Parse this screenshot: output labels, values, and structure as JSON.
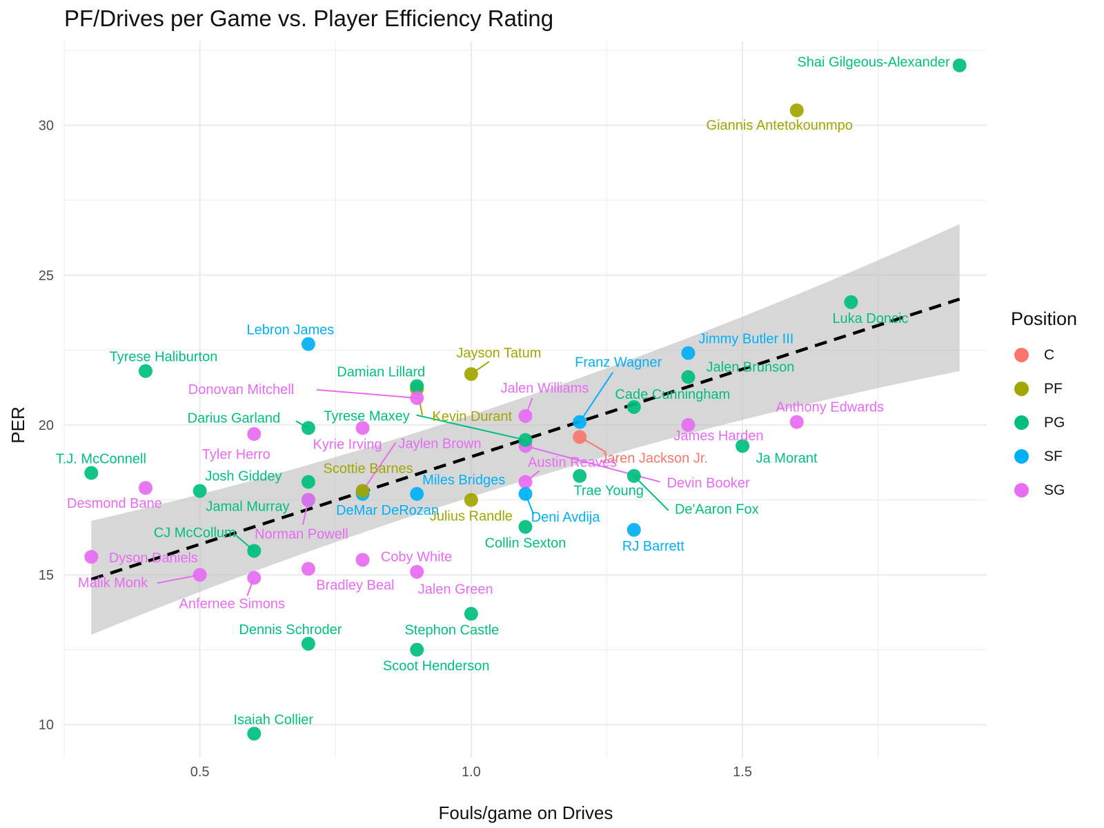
{
  "chart_data": {
    "type": "scatter",
    "title": "PF/Drives per Game vs. Player Efficiency Rating",
    "xlabel": "Fouls/game on Drives",
    "ylabel": "PER",
    "xlim": [
      0.25,
      1.95
    ],
    "ylim": [
      8.9,
      32.8
    ],
    "x_ticks": [
      0.5,
      1.0,
      1.5
    ],
    "x_tick_labels": [
      "0.5",
      "1.0",
      "1.5"
    ],
    "y_ticks": [
      10,
      15,
      20,
      25,
      30
    ],
    "y_tick_labels": [
      "10",
      "15",
      "20",
      "25",
      "30"
    ],
    "grid": true,
    "legend": {
      "title": "Position",
      "placement": "right",
      "entries": [
        {
          "name": "C",
          "color": "#F8766D"
        },
        {
          "name": "PF",
          "color": "#A3A500"
        },
        {
          "name": "PG",
          "color": "#00BF7D"
        },
        {
          "name": "SF",
          "color": "#00B0F6"
        },
        {
          "name": "SG",
          "color": "#E76BF3"
        }
      ]
    },
    "trend": {
      "style": "dashed",
      "color": "#000000",
      "x": [
        0.3,
        1.9
      ],
      "y": [
        14.85,
        24.2
      ],
      "band_upper": [
        16.8,
        26.7
      ],
      "band_lower": [
        13.0,
        21.8
      ],
      "band_color": "#bdbdbd"
    },
    "points": [
      {
        "name": "Shai Gilgeous-Alexander",
        "pos": "PG",
        "x": 1.9,
        "y": 32.0,
        "dx": -14,
        "dy": 2,
        "anchor": "end"
      },
      {
        "name": "Giannis Antetokounmpo",
        "pos": "PF",
        "x": 1.6,
        "y": 30.5,
        "dx": -25,
        "dy": 28,
        "anchor": "middle"
      },
      {
        "name": "Luka Doncic",
        "pos": "PG",
        "x": 1.7,
        "y": 24.1,
        "dx": 28,
        "dy": 30,
        "anchor": "middle"
      },
      {
        "name": "Jimmy Butler III",
        "pos": "SF",
        "x": 1.4,
        "y": 22.4,
        "dx": 84,
        "dy": -14,
        "anchor": "middle"
      },
      {
        "name": "Franz Wagner",
        "pos": "SF",
        "x": 1.2,
        "y": 20.1,
        "dx": 56,
        "dy": -80,
        "anchor": "middle",
        "lx": 48,
        "ly": -72
      },
      {
        "name": "Jalen Brunson",
        "pos": "PG",
        "x": 1.4,
        "y": 21.6,
        "dx": 90,
        "dy": -8,
        "anchor": "middle"
      },
      {
        "name": "Cade Cunningham",
        "pos": "PG",
        "x": 1.3,
        "y": 20.6,
        "dx": 56,
        "dy": -12,
        "anchor": "middle"
      },
      {
        "name": "Anthony Edwards",
        "pos": "SG",
        "x": 1.6,
        "y": 20.1,
        "dx": 48,
        "dy": -15,
        "anchor": "middle"
      },
      {
        "name": "James Harden",
        "pos": "SG",
        "x": 1.4,
        "y": 20.0,
        "dx": 44,
        "dy": 22,
        "anchor": "middle"
      },
      {
        "name": "Ja Morant",
        "pos": "PG",
        "x": 1.5,
        "y": 19.3,
        "dx": 64,
        "dy": 24,
        "anchor": "middle"
      },
      {
        "name": "Jaren Jackson Jr.",
        "pos": "C",
        "x": 1.2,
        "y": 19.6,
        "dx": 108,
        "dy": 37,
        "anchor": "middle",
        "lx": 38,
        "ly": 22
      },
      {
        "name": "Devin Booker",
        "pos": "SG",
        "x": 1.1,
        "y": 19.3,
        "dx": 265,
        "dy": 60,
        "anchor": "middle",
        "lx": 195,
        "ly": 52
      },
      {
        "name": "De'Aaron Fox",
        "pos": "PG",
        "x": 1.3,
        "y": 18.3,
        "dx": 120,
        "dy": 55,
        "anchor": "middle",
        "lx": 50,
        "ly": 50
      },
      {
        "name": "Trae Young",
        "pos": "PG",
        "x": 1.2,
        "y": 18.3,
        "dx": 42,
        "dy": 28,
        "anchor": "middle"
      },
      {
        "name": "RJ Barrett",
        "pos": "SF",
        "x": 1.3,
        "y": 16.5,
        "dx": 28,
        "dy": 30,
        "anchor": "middle"
      },
      {
        "name": "Jalen Williams",
        "pos": "SG",
        "x": 1.1,
        "y": 20.3,
        "dx": 28,
        "dy": -34,
        "anchor": "middle",
        "lx": 10,
        "ly": -26
      },
      {
        "name": "Tyrese Maxey",
        "pos": "PG",
        "x": 1.1,
        "y": 19.5,
        "dx": -230,
        "dy": -28,
        "anchor": "middle",
        "lx": -158,
        "ly": -36
      },
      {
        "name": "Austin Reaves",
        "pos": "SG",
        "x": 1.1,
        "y": 18.1,
        "dx": 68,
        "dy": -22,
        "anchor": "middle",
        "lx": 20,
        "ly": -16
      },
      {
        "name": "Deni Avdija",
        "pos": "SF",
        "x": 1.1,
        "y": 17.7,
        "dx": 58,
        "dy": 40,
        "anchor": "middle",
        "lx": 12,
        "ly": 30
      },
      {
        "name": "Collin Sexton",
        "pos": "PG",
        "x": 1.1,
        "y": 16.6,
        "dx": 0,
        "dy": 30,
        "anchor": "middle"
      },
      {
        "name": "Jayson Tatum",
        "pos": "PF",
        "x": 1.0,
        "y": 21.7,
        "dx": 40,
        "dy": -24,
        "anchor": "middle",
        "lx": 26,
        "ly": -18
      },
      {
        "name": "Kevin Durant",
        "pos": "PF",
        "x": 0.9,
        "y": 21.2,
        "dx": 80,
        "dy": 46,
        "anchor": "middle",
        "lx": 8,
        "ly": 38
      },
      {
        "name": "Julius Randle",
        "pos": "PF",
        "x": 1.0,
        "y": 17.5,
        "dx": 0,
        "dy": 30,
        "anchor": "middle"
      },
      {
        "name": "Stephon Castle",
        "pos": "PG",
        "x": 1.0,
        "y": 13.7,
        "dx": -28,
        "dy": 30,
        "anchor": "middle"
      },
      {
        "name": "Damian Lillard",
        "pos": "PG",
        "x": 0.9,
        "y": 21.3,
        "dx": -52,
        "dy": -14,
        "anchor": "middle"
      },
      {
        "name": "Donovan Mitchell",
        "pos": "SG",
        "x": 0.9,
        "y": 20.9,
        "dx": -178,
        "dy": -6,
        "anchor": "end",
        "lx": -145,
        "ly": -12
      },
      {
        "name": "Jaylen Brown",
        "pos": "SG",
        "x": 0.8,
        "y": 17.8,
        "dx": 112,
        "dy": -62,
        "anchor": "middle",
        "lx": 48,
        "ly": -70
      },
      {
        "name": "Miles Bridges",
        "pos": "SF",
        "x": 0.9,
        "y": 17.7,
        "dx": 68,
        "dy": -14,
        "anchor": "middle"
      },
      {
        "name": "DeMar DeRozan",
        "pos": "SF",
        "x": 0.8,
        "y": 17.7,
        "dx": 36,
        "dy": 30,
        "anchor": "middle"
      },
      {
        "name": "Coby White",
        "pos": "SG",
        "x": 0.8,
        "y": 15.5,
        "dx": 78,
        "dy": 2,
        "anchor": "middle"
      },
      {
        "name": "Jalen Green",
        "pos": "SG",
        "x": 0.9,
        "y": 15.1,
        "dx": 56,
        "dy": 32,
        "anchor": "middle"
      },
      {
        "name": "Scoot Henderson",
        "pos": "PG",
        "x": 0.9,
        "y": 12.5,
        "dx": 28,
        "dy": 30,
        "anchor": "middle"
      },
      {
        "name": "Kyrie Irving",
        "pos": "SG",
        "x": 0.8,
        "y": 19.9,
        "dx": -22,
        "dy": 30,
        "anchor": "middle"
      },
      {
        "name": "Scottie Barnes",
        "pos": "PF",
        "x": 0.8,
        "y": 17.8,
        "dx": 8,
        "dy": -26,
        "anchor": "middle"
      },
      {
        "name": "Lebron James",
        "pos": "SF",
        "x": 0.7,
        "y": 22.7,
        "dx": -26,
        "dy": -14,
        "anchor": "middle"
      },
      {
        "name": "Darius Garland",
        "pos": "PG",
        "x": 0.7,
        "y": 19.9,
        "dx": -108,
        "dy": -8,
        "anchor": "middle",
        "lx": -18,
        "ly": -10
      },
      {
        "name": "Josh Giddey",
        "pos": "PG",
        "x": 0.7,
        "y": 18.1,
        "dx": -94,
        "dy": -2,
        "anchor": "middle"
      },
      {
        "name": "Jamal Murray",
        "pos": "PG",
        "x": 0.7,
        "y": 17.5,
        "dx": -88,
        "dy": 16,
        "anchor": "middle"
      },
      {
        "name": "Norman Powell",
        "pos": "SG",
        "x": 0.7,
        "y": 17.5,
        "dx": -10,
        "dy": 56,
        "anchor": "middle",
        "lx": -8,
        "ly": 36
      },
      {
        "name": "Bradley Beal",
        "pos": "SG",
        "x": 0.7,
        "y": 15.2,
        "dx": 68,
        "dy": 30,
        "anchor": "middle"
      },
      {
        "name": "Dennis Schroder",
        "pos": "PG",
        "x": 0.7,
        "y": 12.7,
        "dx": -26,
        "dy": -14,
        "anchor": "middle"
      },
      {
        "name": "Tyler Herro",
        "pos": "SG",
        "x": 0.6,
        "y": 19.7,
        "dx": -26,
        "dy": 36,
        "anchor": "middle"
      },
      {
        "name": "CJ McCollum",
        "pos": "PG",
        "x": 0.6,
        "y": 15.8,
        "dx": -86,
        "dy": -20,
        "anchor": "middle",
        "lx": -28,
        "ly": -24
      },
      {
        "name": "Anfernee Simons",
        "pos": "SG",
        "x": 0.6,
        "y": 14.9,
        "dx": -32,
        "dy": 44,
        "anchor": "middle",
        "lx": -10,
        "ly": 26
      },
      {
        "name": "Isaiah Collier",
        "pos": "PG",
        "x": 0.6,
        "y": 9.7,
        "dx": 28,
        "dy": -14,
        "anchor": "middle"
      },
      {
        "name": "Tyrese Haliburton",
        "pos": "PG",
        "x": 0.4,
        "y": 21.8,
        "dx": 26,
        "dy": -14,
        "anchor": "middle"
      },
      {
        "name": "Desmond Bane",
        "pos": "SG",
        "x": 0.4,
        "y": 17.9,
        "dx": -45,
        "dy": 29,
        "anchor": "middle"
      },
      {
        "name": "T.J. McConnell",
        "pos": "PG",
        "x": 0.3,
        "y": 18.4,
        "dx": 14,
        "dy": -14,
        "anchor": "middle"
      },
      {
        "name": "Josh Giddey",
        "pos": "PG",
        "x": 0.5,
        "y": 17.8,
        "skip": true
      },
      {
        "name": "Dyson Daniels",
        "pos": "SG",
        "x": 0.3,
        "y": 15.6,
        "dx": 90,
        "dy": 8,
        "anchor": "middle"
      },
      {
        "name": "Malik Monk",
        "pos": "SG",
        "x": 0.5,
        "y": 15.0,
        "dx": -126,
        "dy": 18,
        "anchor": "middle",
        "lx": -62,
        "ly": 12
      }
    ]
  }
}
